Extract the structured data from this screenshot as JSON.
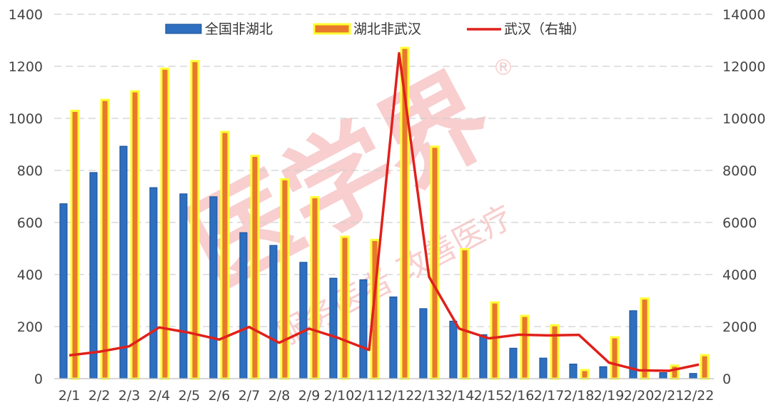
{
  "colors": {
    "bar_blue": "#2e6fbf",
    "bar_blue_edge": "#1a4f93",
    "bar_orange": "#e8782b",
    "bar_yellow_edge": "#ffff33",
    "line_red": "#e0201b",
    "watermark": "#f08c8c"
  },
  "watermark": {
    "main_text": "医学界",
    "registered_mark": "®",
    "sub_text": "服务医者 改善医疗"
  },
  "chart_data": {
    "type": "bar",
    "categories": [
      "2/1",
      "2/2",
      "2/3",
      "2/4",
      "2/5",
      "2/6",
      "2/7",
      "2/8",
      "2/9",
      "2/10",
      "2/11",
      "2/12",
      "2/13",
      "2/14",
      "2/15",
      "2/16",
      "2/17",
      "2/18",
      "2/19",
      "2/20",
      "2/21",
      "2/22"
    ],
    "series": [
      {
        "name": "全国非湖北",
        "type": "bar",
        "axis": "left",
        "color": "#2e6fbf",
        "values": [
          672,
          792,
          893,
          734,
          710,
          699,
          561,
          512,
          447,
          386,
          380,
          314,
          269,
          221,
          169,
          117,
          79,
          56,
          46,
          261,
          23,
          20
        ]
      },
      {
        "name": "湖北非武汉",
        "type": "bar",
        "axis": "left",
        "color": "#e8782b",
        "values": [
          1029,
          1071,
          1104,
          1191,
          1220,
          948,
          856,
          766,
          697,
          545,
          533,
          1271,
          891,
          497,
          293,
          241,
          205,
          33,
          159,
          308,
          50,
          90
        ]
      },
      {
        "name": "武汉（右轴）",
        "type": "line",
        "axis": "right",
        "color": "#e0201b",
        "values": [
          894,
          1033,
          1242,
          1967,
          1766,
          1501,
          1985,
          1379,
          1921,
          1552,
          1104,
          12500,
          3910,
          1923,
          1548,
          1690,
          1660,
          1680,
          615,
          319,
          300,
          541
        ]
      }
    ],
    "y_left": {
      "min": 0,
      "max": 1400,
      "ticks": [
        "0",
        "200",
        "400",
        "600",
        "800",
        "1000",
        "1200",
        "1400"
      ]
    },
    "y_right": {
      "min": 0,
      "max": 14000,
      "ticks": [
        "0",
        "2000",
        "4000",
        "6000",
        "8000",
        "10000",
        "12000",
        "14000"
      ]
    },
    "grid": "horizontal dashed",
    "legend_position": "top"
  }
}
